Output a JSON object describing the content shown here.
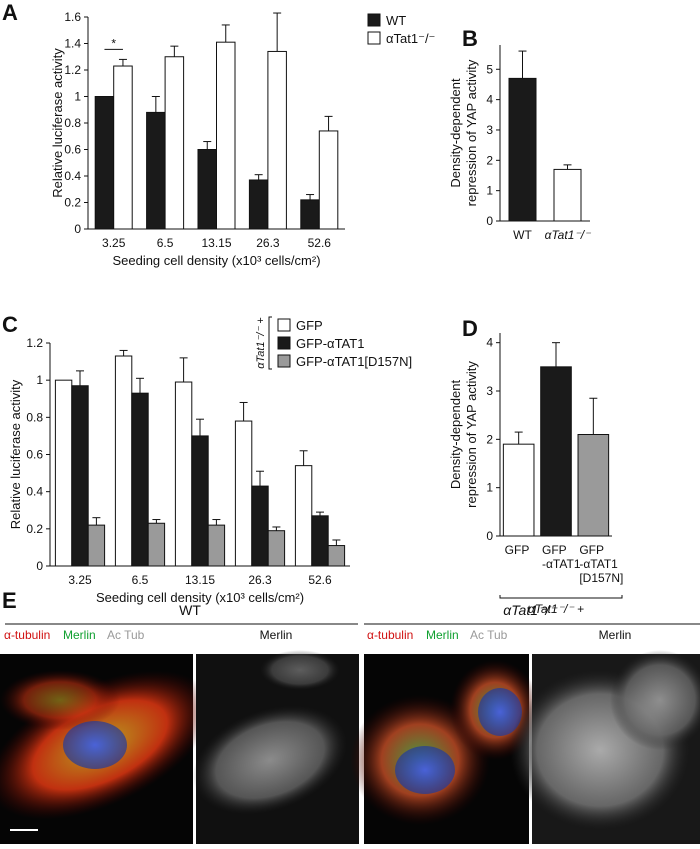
{
  "panels": [
    "A",
    "B",
    "C",
    "D",
    "E"
  ],
  "chart_data": [
    {
      "type": "bar",
      "ylabel": "Relative luciferase activity",
      "xlabel": "Seeding cell density (x10³ cells/cm²)",
      "categories": [
        "3.25",
        "6.5",
        "13.15",
        "26.3",
        "52.6"
      ],
      "series": [
        {
          "name": "WT",
          "color": "#1a1a1a",
          "values": [
            1.0,
            0.88,
            0.6,
            0.37,
            0.22
          ],
          "errors": [
            null,
            0.12,
            0.06,
            0.04,
            0.04
          ]
        },
        {
          "name": "αTat1⁻/⁻",
          "color": "#ffffff",
          "values": [
            1.23,
            1.3,
            1.41,
            1.34,
            0.74
          ],
          "errors": [
            0.05,
            0.08,
            0.13,
            0.29,
            0.11
          ]
        }
      ],
      "ylim": [
        0,
        1.6
      ],
      "yticks": [
        0,
        0.2,
        0.4,
        0.6,
        0.8,
        1,
        1.2,
        1.4,
        1.6
      ],
      "annotation": "*",
      "legend": "top-right"
    },
    {
      "type": "bar",
      "ylabel": [
        "Density-dependent",
        "repression of YAP activity"
      ],
      "categories": [
        "WT",
        "αTat1⁻/⁻"
      ],
      "values": [
        4.7,
        1.7
      ],
      "errors": [
        0.9,
        0.15
      ],
      "colors": [
        "#1a1a1a",
        "#ffffff"
      ],
      "ylim": [
        0,
        5.8
      ],
      "yticks": [
        0,
        1,
        2,
        3,
        4,
        5
      ]
    },
    {
      "type": "bar",
      "ylabel": "Relative luciferase activity",
      "xlabel": "Seeding cell density (x10³ cells/cm²)",
      "categories": [
        "3.25",
        "6.5",
        "13.15",
        "26.3",
        "52.6"
      ],
      "series": [
        {
          "name": "GFP",
          "color": "#ffffff",
          "values": [
            1.0,
            1.13,
            0.99,
            0.78,
            0.54
          ],
          "errors": [
            null,
            0.03,
            0.13,
            0.1,
            0.08
          ]
        },
        {
          "name": "GFP-αTAT1",
          "color": "#1a1a1a",
          "values": [
            0.97,
            0.93,
            0.7,
            0.43,
            0.27
          ],
          "errors": [
            0.08,
            0.08,
            0.09,
            0.08,
            0.02
          ]
        },
        {
          "name": "GFP-αTAT1[D157N]",
          "color": "#9a9a9a",
          "values": [
            0.22,
            0.23,
            0.22,
            0.19,
            0.11
          ],
          "errors": [
            0.04,
            0.02,
            0.03,
            0.02,
            0.03
          ]
        }
      ],
      "ylim": [
        0,
        1.2
      ],
      "yticks": [
        0,
        0.2,
        0.4,
        0.6,
        0.8,
        1,
        1.2
      ],
      "legend": "top-right",
      "legend_note": "αTat1⁻/⁻ +"
    },
    {
      "type": "bar",
      "ylabel": [
        "Density-dependent",
        "repression of YAP activity"
      ],
      "categories": [
        [
          "GFP"
        ],
        [
          "GFP",
          "-αTAT1"
        ],
        [
          "GFP",
          "-αTAT1",
          "[D157N]"
        ]
      ],
      "values": [
        1.9,
        3.5,
        2.1
      ],
      "errors": [
        0.25,
        0.5,
        0.75
      ],
      "colors": [
        "#ffffff",
        "#1a1a1a",
        "#9a9a9a"
      ],
      "ylim": [
        0,
        4.2
      ],
      "yticks": [
        0,
        1,
        2,
        3,
        4
      ],
      "group_label": "αTat1⁻/⁻ +"
    }
  ],
  "panel_e": {
    "groups": [
      {
        "title": "WT",
        "channels": [
          "α-tubulin",
          "Merlin",
          "Ac Tub"
        ],
        "single": "Merlin"
      },
      {
        "title": "αTat1⁻/⁻",
        "channels": [
          "α-tubulin",
          "Merlin",
          "Ac Tub"
        ],
        "single": "Merlin"
      }
    ]
  }
}
